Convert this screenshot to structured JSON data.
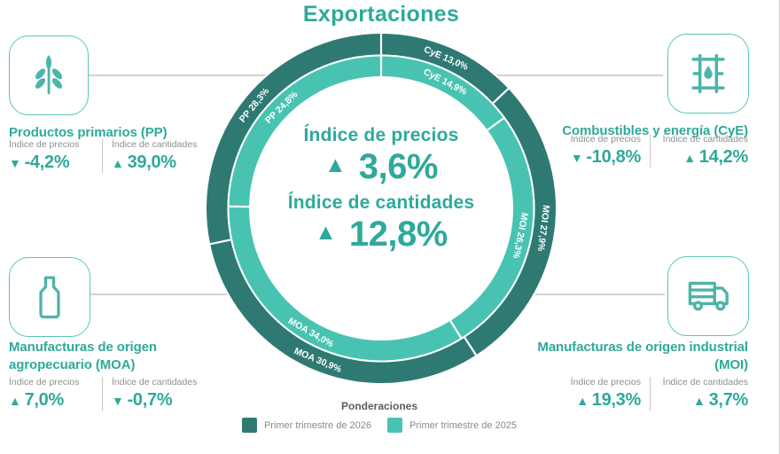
{
  "title": "Exportaciones",
  "colors": {
    "ring_2026": "#2e7a73",
    "ring_2025": "#49c3b1",
    "teal_text": "#2fa99b",
    "icon_teal": "#4db4a8",
    "card_border": "#57c7b8"
  },
  "center": {
    "price_label": "Índice de precios",
    "price_arrow": "▲",
    "price_value": "3,6%",
    "qty_label": "Índice de cantidades",
    "qty_arrow": "▲",
    "qty_value": "12,8%"
  },
  "cards": [
    {
      "id": "pp",
      "icon": "wheat-icon",
      "title": "Productos primarios (PP)",
      "price_label": "Índice de precios",
      "qty_label": "Índice de cantidades",
      "price_arrow": "▼",
      "price_value": "-4,2%",
      "qty_arrow": "▲",
      "qty_value": "39,0%"
    },
    {
      "id": "cye",
      "icon": "oil-barrel-icon",
      "title": "Combustibles y energía (CyE)",
      "price_label": "Índice de precios",
      "qty_label": "Índice de cantidades",
      "price_arrow": "▼",
      "price_value": "-10,8%",
      "qty_arrow": "▲",
      "qty_value": "14,2%"
    },
    {
      "id": "moa",
      "icon": "bottle-icon",
      "title": "Manufacturas de origen agropecuario (MOA)",
      "price_label": "Índice de precios",
      "qty_label": "Índice de cantidades",
      "price_arrow": "▲",
      "price_value": "7,0%",
      "qty_arrow": "▼",
      "qty_value": "-0,7%"
    },
    {
      "id": "moi",
      "icon": "truck-icon",
      "title": "Manufacturas de origen industrial (MOI)",
      "price_label": "Índice de precios",
      "qty_label": "Índice de cantidades",
      "price_arrow": "▲",
      "price_value": "19,3%",
      "qty_arrow": "▲",
      "qty_value": "3,7%"
    }
  ],
  "legend": {
    "title": "Ponderaciones",
    "items": [
      {
        "label": "Primer trimestre de 2026",
        "color": "#2e7a73"
      },
      {
        "label": "Primer trimestre de 2025",
        "color": "#49c3b1"
      }
    ]
  },
  "chart_data": {
    "type": "pie",
    "subtype": "double-ring-donut",
    "title": "Exportaciones",
    "categories": [
      "CyE",
      "MOI",
      "MOA",
      "PP"
    ],
    "start_angle_deg_from_north": 0,
    "direction": "clockwise",
    "series": [
      {
        "name": "Primer trimestre de 2026",
        "ring": "outer",
        "color": "#2e7a73",
        "values": [
          13.0,
          27.9,
          30.9,
          28.3
        ],
        "labels": [
          "CyE 13,0%",
          "MOI 27,9%",
          "MOA 30,9%",
          "PP 28,3%"
        ]
      },
      {
        "name": "Primer trimestre de 2025",
        "ring": "inner",
        "color": "#49c3b1",
        "values": [
          14.9,
          26.3,
          34.0,
          24.8
        ],
        "labels": [
          "CyE 14,9%",
          "MOI 26,3%",
          "MOA 34,0%",
          "PP 24,8%"
        ]
      }
    ],
    "center_annotations": [
      "Índice de precios ▲ 3,6%",
      "Índice de cantidades ▲ 12,8%"
    ],
    "legend_title": "Ponderaciones"
  }
}
